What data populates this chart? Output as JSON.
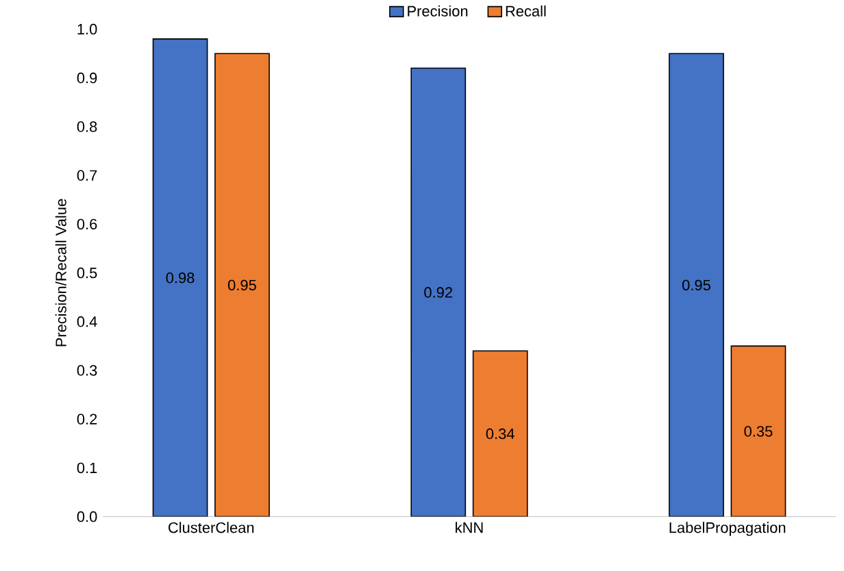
{
  "chart_data": {
    "type": "bar",
    "ylabel": "Precision/Recall Value",
    "categories": [
      "ClusterClean",
      "kNN",
      "LabelPropagation"
    ],
    "series": [
      {
        "name": "Precision",
        "color": "#4472c4",
        "values": [
          0.98,
          0.92,
          0.95
        ]
      },
      {
        "name": "Recall",
        "color": "#ed7d31",
        "values": [
          0.95,
          0.34,
          0.35
        ]
      }
    ],
    "ylim": [
      0,
      1
    ],
    "yticks": [
      {
        "value": 0,
        "label": "0.0"
      },
      {
        "value": 0.1,
        "label": "0.1"
      },
      {
        "value": 0.2,
        "label": "0.2"
      },
      {
        "value": 0.3,
        "label": "0.3"
      },
      {
        "value": 0.4,
        "label": "0.4"
      },
      {
        "value": 0.5,
        "label": "0.5"
      },
      {
        "value": 0.6,
        "label": "0.6"
      },
      {
        "value": 0.7,
        "label": "0.7"
      },
      {
        "value": 0.8,
        "label": "0.8"
      },
      {
        "value": 0.9,
        "label": "0.9"
      },
      {
        "value": 1,
        "label": "1.0"
      }
    ],
    "data_labels": true,
    "legend": "top",
    "grid": false
  }
}
